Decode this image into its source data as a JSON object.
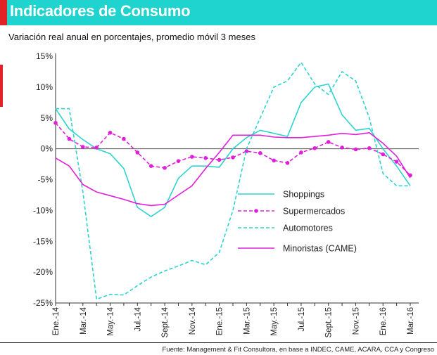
{
  "header": {
    "title": "Indicadores de Consumo"
  },
  "chart_data": {
    "type": "line",
    "title": "Variación real anual en porcentajes, promedio móvil 3 meses",
    "xlabel": "",
    "ylabel": "",
    "ylim": [
      -25,
      15
    ],
    "yticks": [
      15,
      10,
      5,
      0,
      -5,
      -10,
      -15,
      -20,
      -25
    ],
    "ytick_labels": [
      "15%",
      "10%",
      "5%",
      "0%",
      "-5%",
      "-10%",
      "-15%",
      "-20%",
      "-25%"
    ],
    "categories": [
      "Ene.-14",
      "Feb.-14",
      "Mar.-14",
      "Abr.-14",
      "May.-14",
      "Jun.-14",
      "Jul.-14",
      "Ago.-14",
      "Sept.-14",
      "Oct.-14",
      "Nov.-14",
      "Dic.-14",
      "Ene.-15",
      "Feb.-15",
      "Mar.-15",
      "Abr.-15",
      "May.-15",
      "Jun.-15",
      "Jul.-15",
      "Ago.-15",
      "Sept.-15",
      "Oct.-15",
      "Nov.-15",
      "Dic.-15",
      "Ene.-16",
      "Feb.-16",
      "Mar.-16"
    ],
    "tick_labels": [
      "Ene.-14",
      "Mar.-14",
      "May.-14",
      "Jul.-14",
      "Sept.-14",
      "Nov.-14",
      "Ene.-15",
      "Mar.-15",
      "May.-15",
      "Jul.-15",
      "Sept.-15",
      "Nov.-15",
      "Ene.-16",
      "Mar.-16"
    ],
    "series": [
      {
        "name": "Shoppings",
        "color": "#2ed3d0",
        "style": "solid",
        "values": [
          6.5,
          3.2,
          1.5,
          0,
          -0.8,
          -3.2,
          -9.5,
          -11,
          -9.5,
          -4.8,
          -2.8,
          -2.8,
          -3,
          0,
          1.8,
          3,
          2.5,
          2,
          7.5,
          10,
          10.5,
          5.5,
          3,
          3.3,
          0,
          -2.8,
          -6
        ]
      },
      {
        "name": "Supermercados",
        "color": "#e020d8",
        "style": "dashed-markers",
        "values": [
          4.2,
          1.6,
          0.3,
          0.2,
          2.6,
          1.6,
          -0.6,
          -2.8,
          -3.1,
          -2,
          -1.3,
          -1.5,
          -1.8,
          -1.4,
          -0.4,
          -0.7,
          -1.9,
          -2.3,
          -0.6,
          0.1,
          1.1,
          0.2,
          -0.1,
          0.1,
          -0.9,
          -2.1,
          -4.3
        ]
      },
      {
        "name": "Automotores",
        "color": "#2ed3d0",
        "style": "dashed",
        "values": [
          6.5,
          6.5,
          -7,
          -24.4,
          -23.6,
          -23.7,
          -22.2,
          -20.8,
          -19.8,
          -19,
          -18.1,
          -18.8,
          -16.8,
          -10,
          0,
          5,
          10,
          11,
          14,
          10.5,
          8.8,
          12.5,
          11,
          5,
          -4,
          -6,
          -6
        ]
      },
      {
        "name": "Minoristas (CAME)",
        "color": "#e020d8",
        "style": "solid",
        "values": [
          -1.5,
          -2.8,
          -5.8,
          -7,
          -7.6,
          -8.2,
          -8.9,
          -9.2,
          -9,
          -7.5,
          -6,
          -3.2,
          -0.6,
          2.2,
          2.2,
          2.2,
          1.9,
          1.8,
          1.8,
          2,
          2.2,
          2.5,
          2.3,
          2.6,
          0.9,
          -1.2,
          -4.7
        ]
      }
    ],
    "legend_position": "right-center",
    "grid": false
  },
  "footer": {
    "source_label": "Fuente: ",
    "source_text": "Management & Fit Consultora, en base a INDEC, CAME, ACARA, CCA y Congreso"
  }
}
